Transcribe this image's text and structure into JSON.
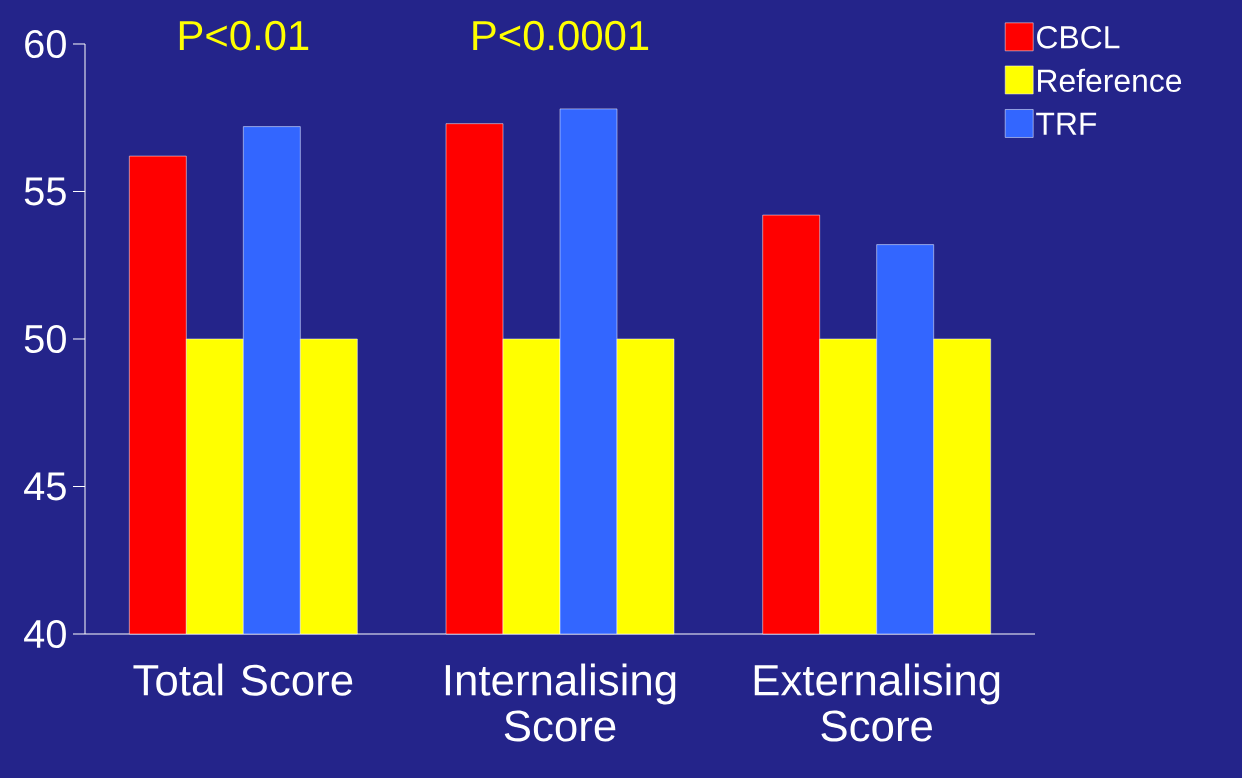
{
  "chart_data": {
    "type": "bar",
    "categories": [
      "Total Score",
      "Internalising Score",
      "Externalising Score"
    ],
    "series": [
      {
        "name": "CBCL",
        "color": "#ff0000",
        "values": [
          56.2,
          57.3,
          54.2
        ]
      },
      {
        "name": "Reference",
        "color": "#ffff00",
        "values": [
          50,
          50,
          50
        ]
      },
      {
        "name": "TRF",
        "color": "#3366ff",
        "values": [
          57.2,
          57.8,
          53.2
        ]
      },
      {
        "color": "#ffff00",
        "values": [
          50,
          50,
          50
        ]
      }
    ],
    "ylim": [
      40,
      60
    ],
    "yticks": [
      40,
      45,
      50,
      55,
      60
    ],
    "legend": "top right",
    "grid": false,
    "annotations": [
      "P<0.01",
      "P<0.0001"
    ]
  }
}
